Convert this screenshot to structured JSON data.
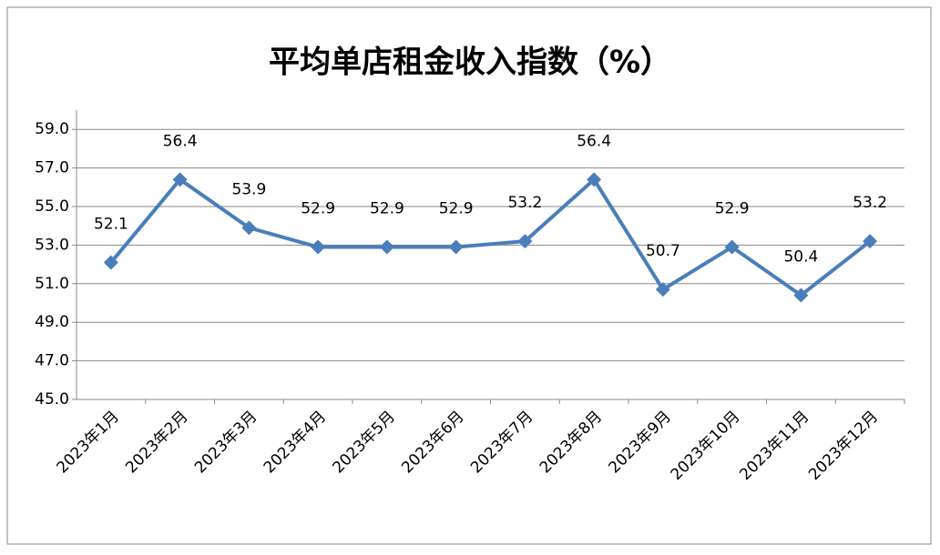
{
  "chart_data": {
    "type": "line",
    "title": "平均单店租金收入指数（%）",
    "categories": [
      "2023年1月",
      "2023年2月",
      "2023年3月",
      "2023年4月",
      "2023年5月",
      "2023年6月",
      "2023年7月",
      "2023年8月",
      "2023年9月",
      "2023年10月",
      "2023年11月",
      "2023年12月"
    ],
    "series": [
      {
        "name": "平均单店租金收入指数",
        "color": "#4a7ebb",
        "values": [
          52.1,
          56.4,
          53.9,
          52.9,
          52.9,
          52.9,
          53.2,
          56.4,
          50.7,
          52.9,
          50.4,
          53.2
        ]
      }
    ],
    "ylim": [
      45,
      60
    ],
    "yticks": [
      {
        "value": 45,
        "label": "45.0"
      },
      {
        "value": 47,
        "label": "47.0"
      },
      {
        "value": 49,
        "label": "49.0"
      },
      {
        "value": 51,
        "label": "51.0"
      },
      {
        "value": 53,
        "label": "53.0"
      },
      {
        "value": 55,
        "label": "55.0"
      },
      {
        "value": 57,
        "label": "57.0"
      },
      {
        "value": 59,
        "label": "59.0"
      }
    ],
    "grid": true
  }
}
